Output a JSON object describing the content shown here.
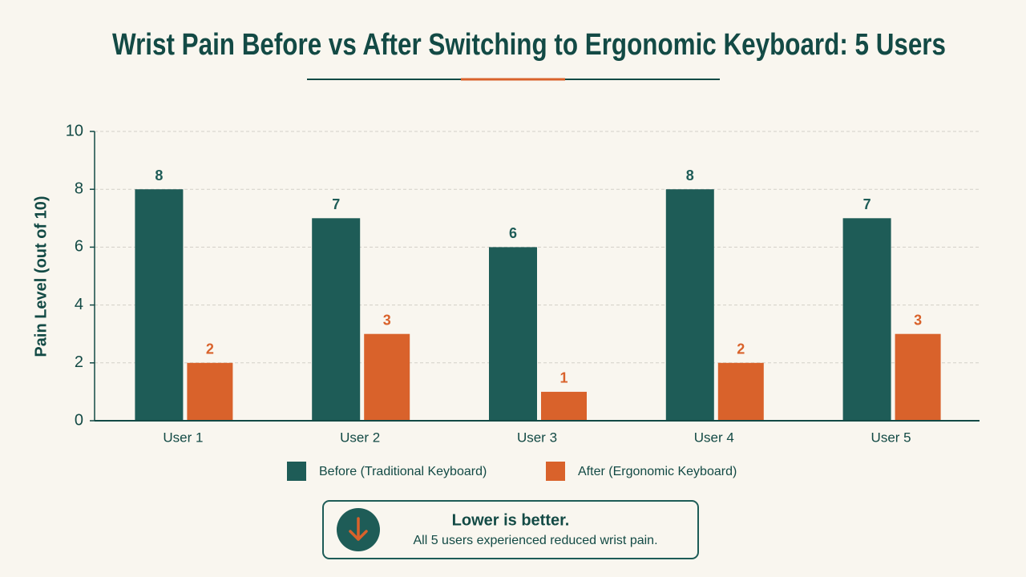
{
  "chart_data": {
    "type": "bar",
    "title": "Wrist Pain Before vs After Switching to Ergonomic Keyboard: 5 Users",
    "y_label": "Pain Level (out of 10)",
    "categories": [
      "User 1",
      "User 2",
      "User 3",
      "User 4",
      "User 5"
    ],
    "series": [
      {
        "name": "Before (Traditional Keyboard)",
        "color": "#1e5c57",
        "values": [
          8,
          7,
          6,
          8,
          7
        ]
      },
      {
        "name": "After (Ergonomic Keyboard)",
        "color": "#d9622b",
        "values": [
          2,
          3,
          1,
          2,
          3
        ]
      }
    ],
    "ylim": [
      0,
      10
    ],
    "yticks": [
      0,
      2,
      4,
      6,
      8,
      10
    ],
    "grid": true,
    "legend": "bottom",
    "annotation": {
      "heading": "Lower is better.",
      "text": "All 5 users experienced reduced wrist pain."
    }
  }
}
